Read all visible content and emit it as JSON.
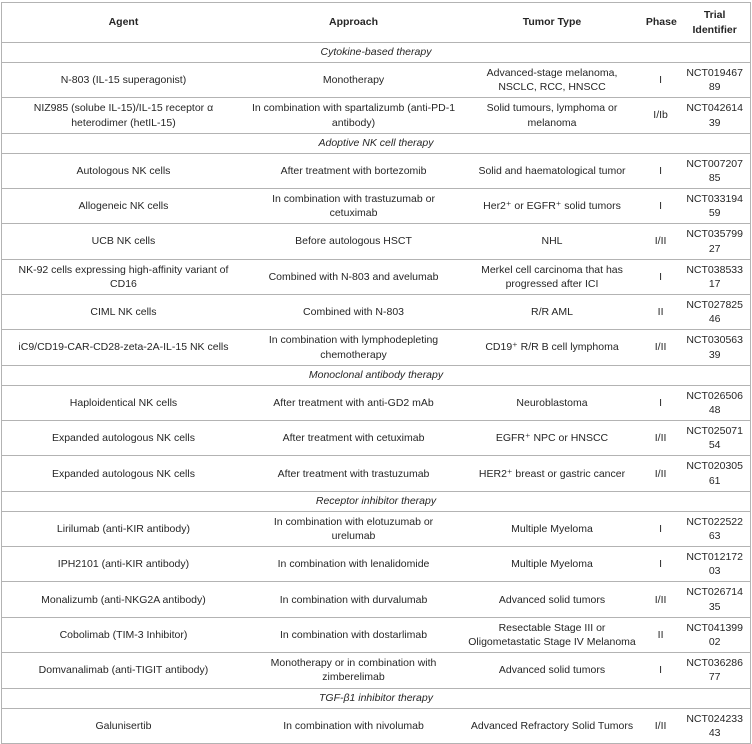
{
  "table": {
    "columns": [
      "Agent",
      "Approach",
      "Tumor Type",
      "Phase",
      "Trial Identifier"
    ],
    "rows": [
      {
        "type": "section",
        "label": "Cytokine-based therapy"
      },
      {
        "type": "data",
        "agent": "N-803 (IL-15 superagonist)",
        "approach": "Monotherapy",
        "tumor": "Advanced-stage melanoma, NSCLC, RCC, HNSCC",
        "phase": "I",
        "trial": "NCT01946789"
      },
      {
        "type": "data",
        "agent": "NIZ985 (solube IL-15)/IL-15 receptor α heterodimer (hetIL-15)",
        "approach": "In combination with spartalizumb (anti-PD-1 antibody)",
        "tumor": "Solid tumours, lymphoma or melanoma",
        "phase": "I/Ib",
        "trial": "NCT04261439"
      },
      {
        "type": "section",
        "label": "Adoptive NK cell therapy"
      },
      {
        "type": "data",
        "agent": "Autologous NK cells",
        "approach": "After treatment with bortezomib",
        "tumor": "Solid and haematological tumor",
        "phase": "I",
        "trial": "NCT00720785"
      },
      {
        "type": "data",
        "agent": "Allogeneic NK cells",
        "approach": "In combination with trastuzumab or cetuximab",
        "tumor": "Her2⁺ or EGFR⁺ solid tumors",
        "phase": "I",
        "trial": "NCT03319459"
      },
      {
        "type": "data",
        "agent": "UCB NK cells",
        "approach": "Before autologous HSCT",
        "tumor": "NHL",
        "phase": "I/II",
        "trial": "NCT03579927"
      },
      {
        "type": "data",
        "agent": "NK-92 cells expressing high-affinity variant of CD16",
        "approach": "Combined with N-803 and avelumab",
        "tumor": "Merkel cell carcinoma that has progressed after ICI",
        "phase": "I",
        "trial": "NCT03853317"
      },
      {
        "type": "data",
        "agent": "CIML NK cells",
        "approach": "Combined with N-803",
        "tumor": "R/R AML",
        "phase": "II",
        "trial": "NCT02782546"
      },
      {
        "type": "data",
        "agent": "iC9/CD19-CAR-CD28-zeta-2A-IL-15 NK cells",
        "approach": "In combination with lymphodepleting chemotherapy",
        "tumor": "CD19⁺ R/R B cell lymphoma",
        "phase": "I/II",
        "trial": "NCT03056339"
      },
      {
        "type": "section",
        "label": "Monoclonal antibody therapy"
      },
      {
        "type": "data",
        "agent": "Haploidentical NK cells",
        "approach": "After treatment with anti-GD2 mAb",
        "tumor": "Neuroblastoma",
        "phase": "I",
        "trial": "NCT02650648"
      },
      {
        "type": "data",
        "agent": "Expanded autologous NK cells",
        "approach": "After treatment with cetuximab",
        "tumor": "EGFR⁺ NPC or HNSCC",
        "phase": "I/II",
        "trial": "NCT02507154"
      },
      {
        "type": "data",
        "agent": "Expanded autologous NK cells",
        "approach": "After treatment with trastuzumab",
        "tumor": "HER2⁺ breast or gastric cancer",
        "phase": "I/II",
        "trial": "NCT02030561"
      },
      {
        "type": "section",
        "label": "Receptor inhibitor therapy"
      },
      {
        "type": "data",
        "agent": "Lirilumab (anti-KIR antibody)",
        "approach": "In combination with elotuzumab or urelumab",
        "tumor": "Multiple Myeloma",
        "phase": "I",
        "trial": "NCT02252263"
      },
      {
        "type": "data",
        "agent": "IPH2101 (anti-KIR antibody)",
        "approach": "In combination with lenalidomide",
        "tumor": "Multiple Myeloma",
        "phase": "I",
        "trial": "NCT01217203"
      },
      {
        "type": "data",
        "agent": "Monalizumb (anti-NKG2A antibody)",
        "approach": "In combination with durvalumab",
        "tumor": "Advanced solid tumors",
        "phase": "I/II",
        "trial": "NCT02671435"
      },
      {
        "type": "data",
        "agent": "Cobolimab (TIM-3 Inhibitor)",
        "approach": "In combination with dostarlimab",
        "tumor": "Resectable Stage III or Oligometastatic Stage IV Melanoma",
        "phase": "II",
        "trial": "NCT04139902"
      },
      {
        "type": "data",
        "agent": "Domvanalimab (anti-TIGIT antibody)",
        "approach": "Monotherapy or in combination with zimberelimab",
        "tumor": "Advanced solid tumors",
        "phase": "I",
        "trial": "NCT03628677"
      },
      {
        "type": "section",
        "label": "TGF-β1 inhibitor therapy"
      },
      {
        "type": "data",
        "agent": "Galunisertib",
        "approach": "In combination with nivolumab",
        "tumor": "Advanced Refractory Solid Tumors",
        "phase": "I/II",
        "trial": "NCT02423343"
      }
    ]
  },
  "colors": {
    "border": "#b3b3b3",
    "text": "#262626",
    "background": "#ffffff"
  }
}
